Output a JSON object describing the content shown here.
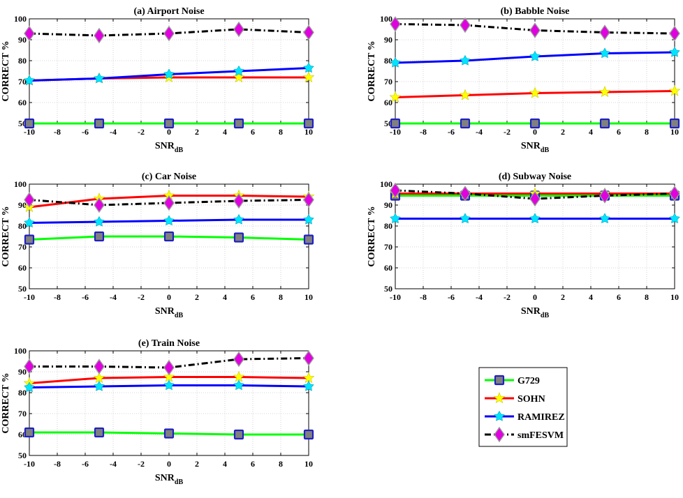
{
  "chart_data": [
    {
      "type": "line",
      "title": "(a) Airport Noise",
      "xlabel": "SNR",
      "xlabel_sub": "dB",
      "ylabel": "CORRECT %",
      "xlim": [
        -10,
        10
      ],
      "ylim": [
        50,
        100
      ],
      "xticks": [
        "-10",
        "-8",
        "-6",
        "-4",
        "-2",
        "0",
        "2",
        "4",
        "6",
        "8",
        "10"
      ],
      "yticks": [
        "50",
        "60",
        "70",
        "80",
        "90",
        "100"
      ],
      "x": [
        -10,
        -5,
        0,
        5,
        10
      ],
      "series": [
        {
          "name": "G729",
          "values": [
            50,
            50,
            50,
            50,
            50
          ]
        },
        {
          "name": "SOHN",
          "values": [
            70.5,
            71.5,
            72,
            72,
            72
          ]
        },
        {
          "name": "RAMIREZ",
          "values": [
            70.5,
            71.5,
            73.5,
            75,
            76.5
          ]
        },
        {
          "name": "smFESVM",
          "values": [
            93,
            92,
            93,
            95,
            93.5
          ]
        }
      ]
    },
    {
      "type": "line",
      "title": "(b) Babble Noise",
      "xlabel": "SNR",
      "xlabel_sub": "dB",
      "ylabel": "CORRECT %",
      "xlim": [
        -10,
        10
      ],
      "ylim": [
        50,
        100
      ],
      "xticks": [
        "-10",
        "-8",
        "-6",
        "-4",
        "-2",
        "0",
        "2",
        "4",
        "6",
        "8",
        "10"
      ],
      "yticks": [
        "50",
        "60",
        "70",
        "80",
        "90",
        "100"
      ],
      "x": [
        -10,
        -5,
        0,
        5,
        10
      ],
      "series": [
        {
          "name": "G729",
          "values": [
            50,
            50,
            50,
            50,
            50
          ]
        },
        {
          "name": "SOHN",
          "values": [
            62.5,
            63.5,
            64.5,
            65,
            65.5
          ]
        },
        {
          "name": "RAMIREZ",
          "values": [
            79,
            80,
            82,
            83.5,
            84
          ]
        },
        {
          "name": "smFESVM",
          "values": [
            97.5,
            97,
            94.5,
            93.5,
            93
          ]
        }
      ]
    },
    {
      "type": "line",
      "title": "(c) Car Noise",
      "xlabel": "SNR",
      "xlabel_sub": "dB",
      "ylabel": "CORRECT %",
      "xlim": [
        -10,
        10
      ],
      "ylim": [
        50,
        100
      ],
      "xticks": [
        "-10",
        "-8",
        "-6",
        "-4",
        "-2",
        "0",
        "2",
        "4",
        "6",
        "8",
        "10"
      ],
      "yticks": [
        "50",
        "60",
        "70",
        "80",
        "90",
        "100"
      ],
      "x": [
        -10,
        -5,
        0,
        5,
        10
      ],
      "series": [
        {
          "name": "G729",
          "values": [
            73.5,
            75,
            75,
            74.5,
            73.5
          ]
        },
        {
          "name": "SOHN",
          "values": [
            89,
            93,
            94.5,
            94.5,
            94
          ]
        },
        {
          "name": "RAMIREZ",
          "values": [
            81.5,
            82,
            82.5,
            83,
            83
          ]
        },
        {
          "name": "smFESVM",
          "values": [
            92.5,
            90,
            91,
            92,
            92.5
          ]
        }
      ]
    },
    {
      "type": "line",
      "title": "(d) Subway Noise",
      "xlabel": "SNR",
      "xlabel_sub": "dB",
      "ylabel": "CORRECT %",
      "xlim": [
        -10,
        10
      ],
      "ylim": [
        50,
        100
      ],
      "xticks": [
        "-10",
        "-8",
        "-6",
        "-4",
        "-2",
        "0",
        "2",
        "4",
        "6",
        "8",
        "10"
      ],
      "yticks": [
        "50",
        "60",
        "70",
        "80",
        "90",
        "100"
      ],
      "x": [
        -10,
        -5,
        0,
        5,
        10
      ],
      "series": [
        {
          "name": "G729",
          "values": [
            94.5,
            94.5,
            94.5,
            94.5,
            94.5
          ]
        },
        {
          "name": "SOHN",
          "values": [
            95.5,
            95.5,
            95.5,
            95.5,
            95.5
          ]
        },
        {
          "name": "RAMIREZ",
          "values": [
            83.5,
            83.5,
            83.5,
            83.5,
            83.5
          ]
        },
        {
          "name": "smFESVM",
          "values": [
            97,
            95.5,
            93,
            94.5,
            95.5
          ]
        }
      ]
    },
    {
      "type": "line",
      "title": "(e) Train Noise",
      "xlabel": "SNR",
      "xlabel_sub": "dB",
      "ylabel": "CORRECT %",
      "xlim": [
        -10,
        10
      ],
      "ylim": [
        50,
        100
      ],
      "xticks": [
        "-10",
        "-8",
        "-6",
        "-4",
        "-2",
        "0",
        "2",
        "4",
        "6",
        "8",
        "10"
      ],
      "yticks": [
        "50",
        "60",
        "70",
        "80",
        "90",
        "100"
      ],
      "x": [
        -10,
        -5,
        0,
        5,
        10
      ],
      "series": [
        {
          "name": "G729",
          "values": [
            61,
            61,
            60.5,
            60,
            60
          ]
        },
        {
          "name": "SOHN",
          "values": [
            84.5,
            87,
            87.5,
            87.5,
            87
          ]
        },
        {
          "name": "RAMIREZ",
          "values": [
            82.5,
            83,
            83.5,
            83.5,
            83
          ]
        },
        {
          "name": "smFESVM",
          "values": [
            92.5,
            92.5,
            92,
            96,
            96.5
          ]
        }
      ]
    }
  ],
  "legend": {
    "entries": [
      {
        "name": "G729",
        "color": "#00ff00",
        "line": "solid",
        "marker": "square",
        "marker_color": "#5a6a98"
      },
      {
        "name": "SOHN",
        "color": "#ff0000",
        "line": "solid",
        "marker": "star",
        "marker_color": "#ffff00"
      },
      {
        "name": "RAMIREZ",
        "color": "#0000ff",
        "line": "solid",
        "marker": "star",
        "marker_color": "#00e5ff"
      },
      {
        "name": "smFESVM",
        "color": "#000000",
        "line": "dashdot",
        "marker": "diamond",
        "marker_color": "#e000e0"
      }
    ]
  }
}
